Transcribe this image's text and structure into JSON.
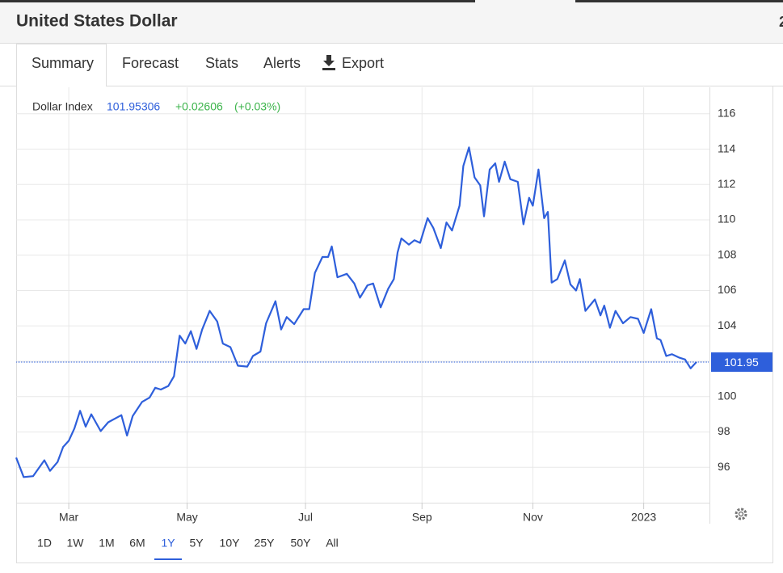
{
  "header": {
    "title": "United States Dollar",
    "cut_text": "2"
  },
  "tabs": [
    "Summary",
    "Forecast",
    "Stats",
    "Alerts",
    "Export"
  ],
  "ranges": [
    "1D",
    "1W",
    "1M",
    "6M",
    "1Y",
    "5Y",
    "10Y",
    "25Y",
    "50Y",
    "All"
  ],
  "chart_data": {
    "type": "line",
    "current": {
      "value": 101.95306,
      "label": "101.95",
      "change": "+0.02606",
      "change_pct": "(+0.03%)"
    },
    "x": [
      0,
      4,
      9,
      13,
      15,
      18,
      22,
      25,
      28,
      31,
      34,
      37,
      40,
      45,
      49,
      56,
      59,
      62,
      67,
      71,
      74,
      77,
      81,
      84,
      87,
      90,
      93,
      96,
      99,
      103,
      107,
      110,
      114,
      118,
      123,
      126,
      130,
      133,
      138,
      141,
      144,
      148,
      153,
      156,
      159,
      163,
      166,
      168,
      171,
      176,
      180,
      183,
      187,
      190,
      194,
      198,
      201,
      203,
      205,
      209,
      212,
      215,
      219,
      222,
      226,
      229,
      232,
      236,
      238,
      241,
      244,
      247,
      249,
      252,
      255,
      257,
      260,
      263,
      267,
      270,
      273,
      275,
      278,
      281,
      283,
      285,
      288,
      292,
      295,
      298,
      300,
      303,
      308,
      311,
      313,
      316,
      319,
      323,
      327,
      331,
      334,
      338,
      341,
      343,
      346,
      349,
      353,
      356,
      359,
      362
    ],
    "series": [
      {
        "name": "Dollar Index",
        "color": "#2e5fdb",
        "values": [
          96.55,
          95.45,
          95.5,
          96.1,
          96.4,
          95.8,
          96.3,
          97.15,
          97.5,
          98.2,
          99.2,
          98.3,
          99.0,
          98.05,
          98.55,
          98.95,
          97.8,
          98.9,
          99.7,
          99.95,
          100.5,
          100.4,
          100.6,
          101.15,
          103.45,
          103.0,
          103.7,
          102.7,
          103.8,
          104.85,
          104.25,
          103.0,
          102.8,
          101.75,
          101.7,
          102.3,
          102.55,
          104.15,
          105.4,
          103.8,
          104.5,
          104.1,
          104.95,
          104.95,
          107.0,
          107.9,
          107.9,
          108.5,
          106.75,
          106.95,
          106.4,
          105.6,
          106.3,
          106.4,
          105.05,
          106.1,
          106.65,
          108.15,
          108.95,
          108.6,
          108.85,
          108.7,
          110.1,
          109.55,
          108.4,
          109.85,
          109.4,
          110.8,
          113.05,
          114.1,
          112.4,
          111.95,
          110.2,
          112.85,
          113.2,
          112.15,
          113.3,
          112.3,
          112.15,
          109.75,
          111.25,
          110.8,
          112.85,
          110.1,
          110.45,
          106.45,
          106.65,
          107.7,
          106.35,
          106.0,
          106.65,
          104.85,
          105.5,
          104.6,
          105.15,
          103.9,
          104.85,
          104.15,
          104.5,
          104.4,
          103.6,
          104.95,
          103.3,
          103.2,
          102.3,
          102.4,
          102.2,
          102.1,
          101.6,
          101.95
        ]
      }
    ],
    "xlim": [
      0,
      369
    ],
    "xticks": [
      {
        "value": 28,
        "label": "Mar"
      },
      {
        "value": 91,
        "label": "May"
      },
      {
        "value": 154,
        "label": "Jul"
      },
      {
        "value": 216,
        "label": "Sep"
      },
      {
        "value": 275,
        "label": "Nov"
      },
      {
        "value": 334,
        "label": "2023"
      }
    ],
    "ylim": [
      94,
      117.5
    ],
    "yticks": [
      96,
      98,
      100,
      102,
      104,
      106,
      108,
      110,
      112,
      114,
      116
    ],
    "grid": true
  }
}
